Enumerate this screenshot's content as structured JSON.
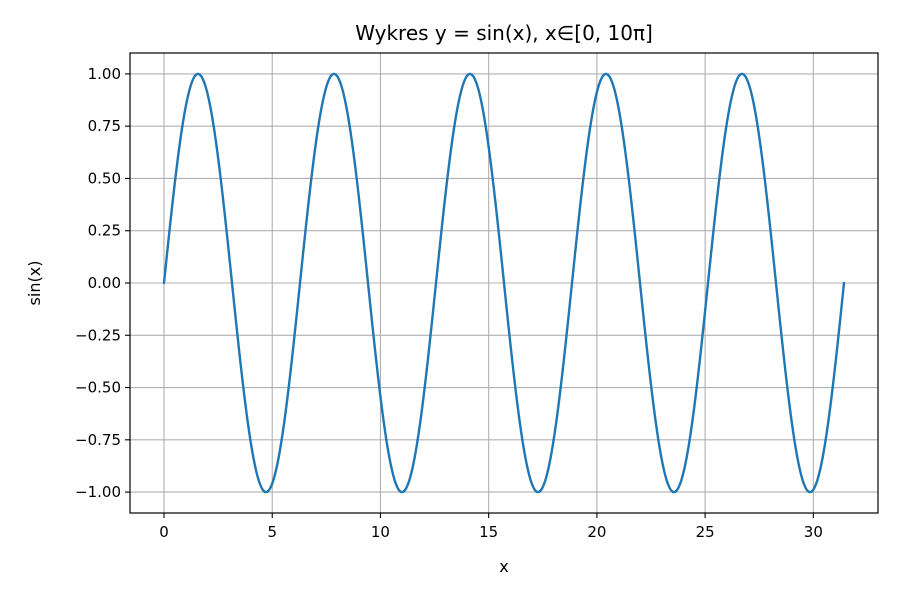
{
  "chart_data": {
    "type": "line",
    "title": "Wykres y = sin(x), x∈[0, 10π]",
    "xlabel": "x",
    "ylabel": "sin(x)",
    "xlim": [
      -1.571,
      32.987
    ],
    "ylim": [
      -1.1,
      1.1
    ],
    "grid": true,
    "x_ticks": [
      0,
      5,
      10,
      15,
      20,
      25,
      30
    ],
    "x_tick_labels": [
      "0",
      "5",
      "10",
      "15",
      "20",
      "25",
      "30"
    ],
    "y_ticks": [
      1.0,
      0.75,
      0.5,
      0.25,
      0.0,
      -0.25,
      -0.5,
      -0.75,
      -1.0
    ],
    "y_tick_labels": [
      "1.00",
      "0.75",
      "0.50",
      "0.25",
      "0.00",
      "−0.25",
      "−0.50",
      "−0.75",
      "−1.00"
    ],
    "series": [
      {
        "function": "sin(x)",
        "domain": [
          0,
          31.416
        ],
        "color": "#1f77b4",
        "x": [
          0,
          0.785,
          1.571,
          2.356,
          3.142,
          3.927,
          4.712,
          5.498,
          6.283,
          7.069,
          7.854,
          8.639,
          9.425,
          10.21,
          10.996,
          11.781,
          12.566,
          13.352,
          14.137,
          14.923,
          15.708,
          16.493,
          17.279,
          18.064,
          18.85,
          19.635,
          20.42,
          21.206,
          21.991,
          22.777,
          23.562,
          24.347,
          25.133,
          25.918,
          26.704,
          27.489,
          28.274,
          29.06,
          29.845,
          30.631,
          31.416
        ],
        "y": [
          0,
          0.707,
          1,
          0.707,
          0,
          -0.707,
          -1,
          -0.707,
          0,
          0.707,
          1,
          0.707,
          0,
          -0.707,
          -1,
          -0.707,
          0,
          0.707,
          1,
          0.707,
          0,
          -0.707,
          -1,
          -0.707,
          0,
          0.707,
          1,
          0.707,
          0,
          -0.707,
          -1,
          -0.707,
          0,
          0.707,
          1,
          0.707,
          0,
          -0.707,
          -1,
          -0.707,
          0
        ]
      }
    ]
  }
}
